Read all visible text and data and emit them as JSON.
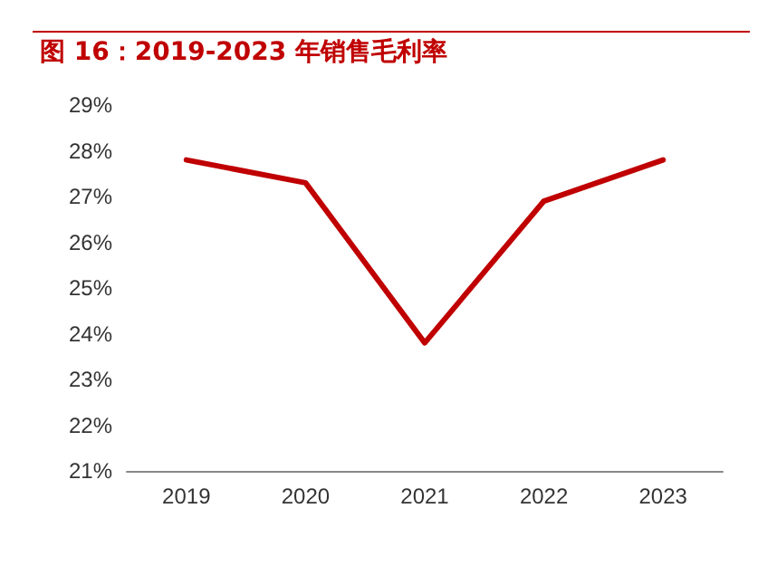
{
  "chart_data": {
    "type": "line",
    "title": "图 16：2019-2023 年销售毛利率",
    "categories": [
      "2019",
      "2020",
      "2021",
      "2022",
      "2023"
    ],
    "series": [
      {
        "color": "#c00000",
        "values": [
          27.8,
          27.3,
          23.8,
          26.9,
          27.8
        ]
      }
    ],
    "ylim": [
      21,
      29
    ],
    "yticks": [
      {
        "value": 21,
        "label": "21%"
      },
      {
        "value": 22,
        "label": "22%"
      },
      {
        "value": 23,
        "label": "23%"
      },
      {
        "value": 24,
        "label": "24%"
      },
      {
        "value": 25,
        "label": "25%"
      },
      {
        "value": 26,
        "label": "26%"
      },
      {
        "value": 27,
        "label": "27%"
      },
      {
        "value": 28,
        "label": "28%"
      },
      {
        "value": 29,
        "label": "29%"
      }
    ],
    "grid": false,
    "marker": "none",
    "line_style": "solid"
  }
}
